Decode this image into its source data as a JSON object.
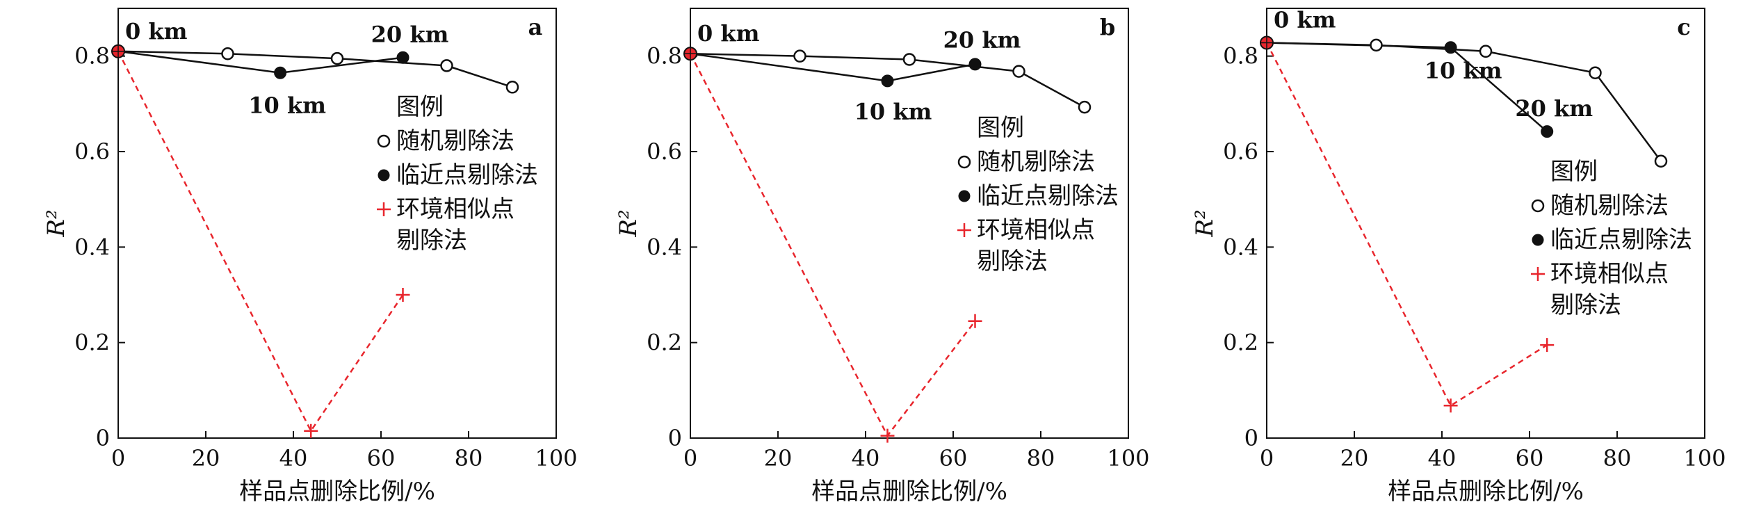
{
  "chart_data": [
    {
      "type": "line",
      "panel_label": "a",
      "xlabel": "样品点删除比例/%",
      "ylabel": "R²",
      "xlim": [
        0,
        100
      ],
      "ylim": [
        0,
        0.9
      ],
      "x_ticks": [
        "0",
        "20",
        "40",
        "60",
        "80",
        "100"
      ],
      "y_ticks": [
        "0",
        "0.2",
        "0.4",
        "0.6",
        "0.8"
      ],
      "legend": {
        "title": "图例",
        "position": "center-right",
        "entries": [
          "随机剔除法",
          "临近点剔除法",
          "环境相似点",
          "剔除法"
        ]
      },
      "series": [
        {
          "name": "随机剔除法",
          "x": [
            0,
            25,
            50,
            75,
            90
          ],
          "y": [
            0.81,
            0.805,
            0.795,
            0.78,
            0.735
          ]
        },
        {
          "name": "临近点剔除法",
          "x": [
            0,
            37,
            65
          ],
          "y": [
            0.81,
            0.765,
            0.797
          ]
        },
        {
          "name": "环境相似点剔除法",
          "x": [
            0,
            44,
            65
          ],
          "y": [
            0.81,
            0.015,
            0.3
          ]
        }
      ],
      "annotations": [
        {
          "text": "0 km",
          "x": 0,
          "y": 0.81
        },
        {
          "text": "10 km",
          "x": 37,
          "y": 0.765
        },
        {
          "text": "20 km",
          "x": 65,
          "y": 0.797
        }
      ]
    },
    {
      "type": "line",
      "panel_label": "b",
      "xlabel": "样品点删除比例/%",
      "ylabel": "R²",
      "xlim": [
        0,
        100
      ],
      "ylim": [
        0,
        0.9
      ],
      "x_ticks": [
        "0",
        "20",
        "40",
        "60",
        "80",
        "100"
      ],
      "y_ticks": [
        "0",
        "0.2",
        "0.4",
        "0.6",
        "0.8"
      ],
      "legend": {
        "title": "图例",
        "position": "center-right",
        "entries": [
          "随机剔除法",
          "临近点剔除法",
          "环境相似点",
          "剔除法"
        ]
      },
      "series": [
        {
          "name": "随机剔除法",
          "x": [
            0,
            25,
            50,
            75,
            90
          ],
          "y": [
            0.805,
            0.8,
            0.793,
            0.768,
            0.693
          ]
        },
        {
          "name": "临近点剔除法",
          "x": [
            0,
            45,
            65
          ],
          "y": [
            0.805,
            0.748,
            0.783
          ]
        },
        {
          "name": "环境相似点剔除法",
          "x": [
            0,
            45,
            65
          ],
          "y": [
            0.805,
            0.005,
            0.245
          ]
        }
      ],
      "annotations": [
        {
          "text": "0 km",
          "x": 0,
          "y": 0.805
        },
        {
          "text": "10 km",
          "x": 45,
          "y": 0.748
        },
        {
          "text": "20 km",
          "x": 65,
          "y": 0.783
        }
      ]
    },
    {
      "type": "line",
      "panel_label": "c",
      "xlabel": "样品点删除比例/%",
      "ylabel": "R²",
      "xlim": [
        0,
        100
      ],
      "ylim": [
        0,
        0.9
      ],
      "x_ticks": [
        "0",
        "20",
        "40",
        "60",
        "80",
        "100"
      ],
      "y_ticks": [
        "0",
        "0.2",
        "0.4",
        "0.6",
        "0.8"
      ],
      "legend": {
        "title": "图例",
        "position": "center-right",
        "entries": [
          "随机剔除法",
          "临近点剔除法",
          "环境相似点",
          "剔除法"
        ]
      },
      "series": [
        {
          "name": "随机剔除法",
          "x": [
            0,
            25,
            50,
            75,
            90
          ],
          "y": [
            0.828,
            0.823,
            0.81,
            0.765,
            0.58
          ]
        },
        {
          "name": "临近点剔除法",
          "x": [
            0,
            42,
            64
          ],
          "y": [
            0.828,
            0.818,
            0.642
          ]
        },
        {
          "name": "环境相似点剔除法",
          "x": [
            0,
            42,
            64
          ],
          "y": [
            0.828,
            0.068,
            0.195
          ]
        }
      ],
      "annotations": [
        {
          "text": "0 km",
          "x": 0,
          "y": 0.828
        },
        {
          "text": "10 km",
          "x": 42,
          "y": 0.818
        },
        {
          "text": "20 km",
          "x": 64,
          "y": 0.642
        }
      ]
    }
  ],
  "style": {
    "line_color": "#111111",
    "red_color": "#e8262d",
    "open_marker_fill": "#ffffff"
  }
}
